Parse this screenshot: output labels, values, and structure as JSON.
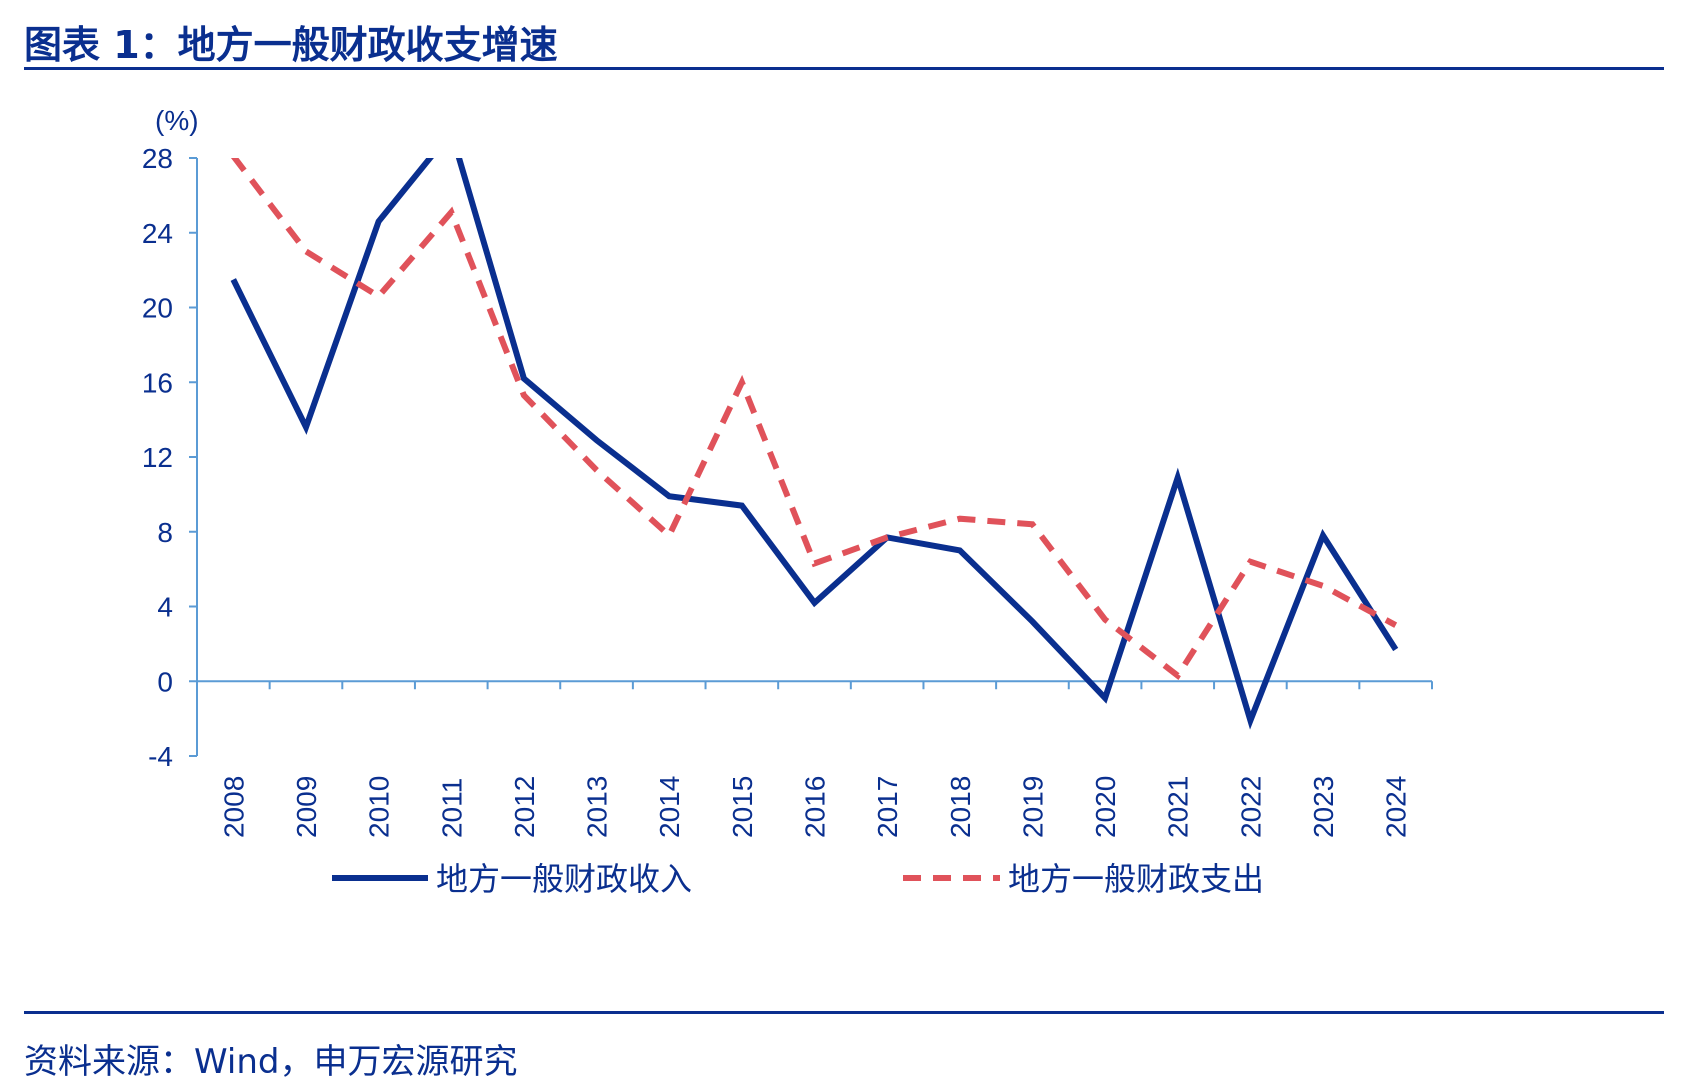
{
  "title": "图表 1：地方一般财政收支增速",
  "source": "资料来源：Wind，申万宏源研究",
  "colors": {
    "brand": "#0a2f8f",
    "axis": "#5b9bd5",
    "income": "#0a2f8f",
    "expenditure": "#e0525a"
  },
  "chart_data": {
    "type": "line",
    "title": "地方一般财政收支增速",
    "ylabel": "(%)",
    "xlabel": "",
    "ylim": [
      -4,
      28
    ],
    "yticks": [
      -4,
      0,
      4,
      8,
      12,
      16,
      20,
      24,
      28
    ],
    "grid": false,
    "legend_position": "bottom",
    "categories": [
      "2008",
      "2009",
      "2010",
      "2011",
      "2012",
      "2013",
      "2014",
      "2015",
      "2016",
      "2017",
      "2018",
      "2019",
      "2020",
      "2021",
      "2022",
      "2023",
      "2024"
    ],
    "series": [
      {
        "name": "地方一般财政收入",
        "style": "solid",
        "values": [
          21.5,
          13.6,
          24.6,
          29.4,
          16.2,
          12.9,
          9.9,
          9.4,
          4.2,
          7.7,
          7.0,
          3.2,
          -0.9,
          10.9,
          -2.1,
          7.8,
          1.7
        ]
      },
      {
        "name": "地方一般财政支出",
        "style": "dashed",
        "values": [
          28.1,
          23.0,
          20.6,
          25.1,
          15.3,
          11.3,
          7.8,
          16.0,
          6.3,
          7.7,
          8.7,
          8.4,
          3.3,
          0.3,
          6.4,
          5.1,
          3.0
        ]
      }
    ]
  }
}
